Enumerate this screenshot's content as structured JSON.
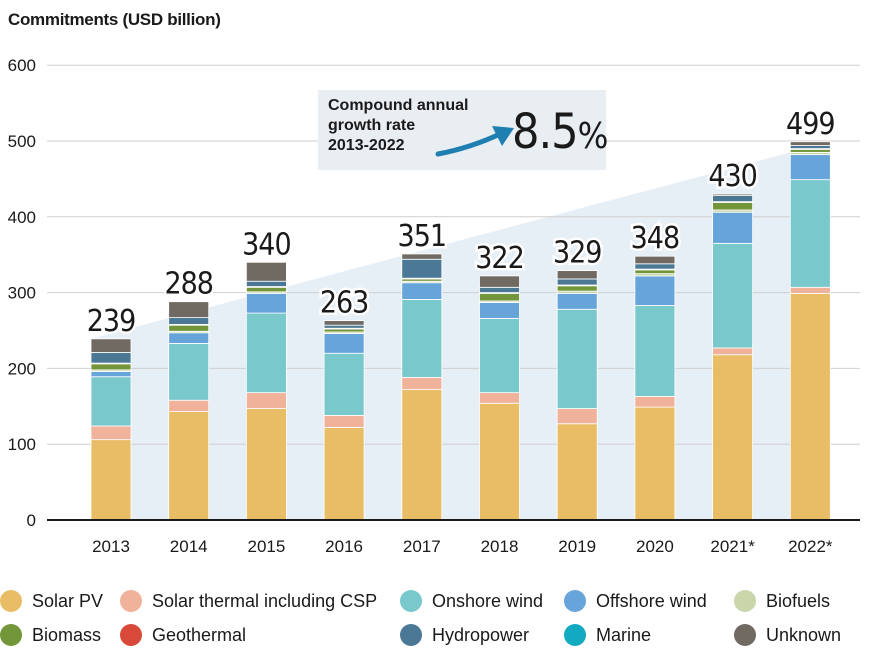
{
  "chart_data": {
    "type": "bar",
    "stacked": true,
    "ylabel": "Commitments (USD billion)",
    "xlabel": "",
    "ylim": [
      0,
      600
    ],
    "yticks": [
      0,
      100,
      200,
      300,
      400,
      500,
      600
    ],
    "grid": true,
    "categories": [
      "2013",
      "2014",
      "2015",
      "2016",
      "2017",
      "2018",
      "2019",
      "2020",
      "2021*",
      "2022*"
    ],
    "totals": [
      239,
      288,
      340,
      263,
      351,
      322,
      329,
      348,
      430,
      499
    ],
    "total_labels": [
      "239",
      "288",
      "340",
      "263",
      "351",
      "322",
      "329",
      "348",
      "430",
      "499"
    ],
    "series": [
      {
        "name": "Solar PV",
        "color": "#e9bd66",
        "values": [
          106,
          143,
          147,
          122,
          172,
          154,
          127,
          149,
          218,
          299
        ]
      },
      {
        "name": "Solar thermal including CSP",
        "color": "#f0b29a",
        "values": [
          18,
          15,
          21,
          16,
          16,
          14,
          20,
          14,
          9,
          8
        ]
      },
      {
        "name": "Onshore wind",
        "color": "#79c8cc",
        "values": [
          65,
          75,
          105,
          82,
          103,
          98,
          131,
          120,
          138,
          142
        ]
      },
      {
        "name": "Offshore wind",
        "color": "#67a4da",
        "values": [
          7,
          14,
          26,
          26,
          22,
          21,
          21,
          39,
          41,
          33
        ]
      },
      {
        "name": "Biofuels",
        "color": "#c8d6aa",
        "values": [
          2,
          2,
          2,
          2,
          2,
          2,
          3,
          3,
          3,
          3
        ]
      },
      {
        "name": "Biomass",
        "color": "#74963a",
        "values": [
          8,
          8,
          6,
          4,
          3,
          10,
          7,
          5,
          10,
          4
        ]
      },
      {
        "name": "Geothermal",
        "color": "#d9493a",
        "values": [
          1,
          1,
          1,
          1,
          1,
          1,
          1,
          1,
          1,
          1
        ]
      },
      {
        "name": "Hydropower",
        "color": "#4a7895",
        "values": [
          14,
          9,
          7,
          4,
          25,
          7,
          8,
          7,
          8,
          4
        ]
      },
      {
        "name": "Marine",
        "color": "#12aac0",
        "values": [
          0,
          0,
          0,
          0,
          0,
          0,
          0,
          0,
          0,
          0
        ]
      },
      {
        "name": "Unknown",
        "color": "#716a63",
        "values": [
          18,
          21,
          25,
          6,
          7,
          15,
          11,
          10,
          2,
          5
        ]
      }
    ],
    "trend_area_color": "#e6eef6",
    "annotation": {
      "text": "Compound annual growth rate 2013-2022",
      "value": "8.5%"
    }
  },
  "annotation": {
    "line1": "Compound annual",
    "line2": "growth rate",
    "line3": "2013-2022",
    "rate_number": "8.5",
    "rate_unit": "%"
  },
  "legend": [
    {
      "label": "Solar PV",
      "color": "#e9bd66"
    },
    {
      "label": "Solar thermal including CSP",
      "color": "#f0b29a"
    },
    {
      "label": "Onshore wind",
      "color": "#79c8cc"
    },
    {
      "label": "Offshore wind",
      "color": "#67a4da"
    },
    {
      "label": "Biofuels",
      "color": "#c8d6aa"
    },
    {
      "label": "Biomass",
      "color": "#74963a"
    },
    {
      "label": "Geothermal",
      "color": "#d9493a"
    },
    {
      "label": "Hydropower",
      "color": "#4a7895"
    },
    {
      "label": "Marine",
      "color": "#12aac0"
    },
    {
      "label": "Unknown",
      "color": "#716a63"
    }
  ]
}
